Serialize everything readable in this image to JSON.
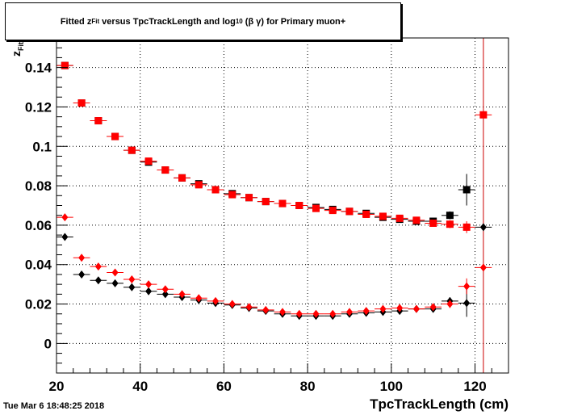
{
  "title": {
    "prefix": "Fitted",
    "var": "z",
    "var_sub": "Fit",
    "middle": "versus TpcTrackLength and log",
    "log_sub": "10",
    "suffix": "(β γ) for Primary muon+"
  },
  "timestamp": "Tue Mar  6 18:48:25 2018",
  "chart_data": {
    "type": "scatter",
    "xlabel": "TpcTrackLength (cm)",
    "ylabel": "z",
    "ylabel_sub": "Fit",
    "xlim": [
      20,
      128
    ],
    "ylim": [
      -0.015,
      0.155
    ],
    "xticks": [
      20,
      40,
      60,
      80,
      100,
      120
    ],
    "yticks": [
      0,
      0.02,
      0.04,
      0.06,
      0.08,
      0.1,
      0.12,
      0.14
    ],
    "ytick_labels": [
      "0",
      "0.02",
      "0.04",
      "0.06",
      "0.08",
      "0.1",
      "0.12",
      "0.14"
    ],
    "grid": true,
    "vertical_line_x": 122,
    "vertical_line_color": "#cc0000",
    "series": [
      {
        "marker": "square",
        "color": "#000000",
        "x": [
          22,
          26,
          30,
          34,
          38,
          42,
          46,
          50,
          54,
          58,
          62,
          66,
          70,
          74,
          78,
          82,
          86,
          90,
          94,
          98,
          102,
          106,
          110,
          114,
          118
        ],
        "y": [
          0.141,
          0.122,
          0.113,
          0.105,
          0.098,
          0.092,
          0.088,
          0.084,
          0.081,
          0.078,
          0.076,
          0.074,
          0.072,
          0.071,
          0.07,
          0.069,
          0.068,
          0.067,
          0.066,
          0.064,
          0.063,
          0.062,
          0.062,
          0.065,
          0.078
        ],
        "yerr": [
          0.001,
          0.001,
          0.001,
          0.001,
          0.001,
          0.001,
          0.001,
          0.001,
          0.001,
          0.001,
          0.001,
          0.001,
          0.001,
          0.001,
          0.001,
          0.001,
          0.001,
          0.001,
          0.001,
          0.001,
          0.001,
          0.001,
          0.001,
          0.002,
          0.008
        ]
      },
      {
        "marker": "square",
        "color": "#ff0000",
        "x": [
          22,
          26,
          30,
          34,
          38,
          42,
          46,
          50,
          54,
          58,
          62,
          66,
          70,
          74,
          78,
          82,
          86,
          90,
          94,
          98,
          102,
          106,
          110,
          114,
          118,
          122
        ],
        "y": [
          0.141,
          0.122,
          0.113,
          0.105,
          0.098,
          0.0925,
          0.088,
          0.084,
          0.0805,
          0.078,
          0.0755,
          0.074,
          0.072,
          0.071,
          0.07,
          0.0685,
          0.0675,
          0.067,
          0.0655,
          0.0645,
          0.0635,
          0.0625,
          0.061,
          0.0605,
          0.059,
          0.116
        ],
        "yerr": [
          0.001,
          0.001,
          0.001,
          0.001,
          0.001,
          0.001,
          0.001,
          0.001,
          0.001,
          0.001,
          0.001,
          0.001,
          0.001,
          0.001,
          0.001,
          0.001,
          0.001,
          0.001,
          0.001,
          0.001,
          0.001,
          0.001,
          0.001,
          0.002,
          0.003,
          0.0
        ]
      },
      {
        "marker": "diamond",
        "color": "#000000",
        "x": [
          22,
          26,
          30,
          34,
          38,
          42,
          46,
          50,
          54,
          58,
          62,
          66,
          70,
          74,
          78,
          82,
          86,
          90,
          94,
          98,
          102,
          106,
          110,
          114,
          118,
          122
        ],
        "y": [
          0.054,
          0.035,
          0.032,
          0.0305,
          0.0285,
          0.0265,
          0.025,
          0.0235,
          0.022,
          0.0205,
          0.0195,
          0.018,
          0.0165,
          0.015,
          0.014,
          0.014,
          0.014,
          0.015,
          0.0155,
          0.016,
          0.0165,
          0.0175,
          0.0175,
          0.0215,
          0.0205,
          0.059
        ],
        "yerr": [
          0.0005,
          0.0005,
          0.0005,
          0.0005,
          0.0005,
          0.0005,
          0.0005,
          0.0005,
          0.0005,
          0.0005,
          0.0005,
          0.0005,
          0.0005,
          0.0005,
          0.0005,
          0.0005,
          0.0005,
          0.0005,
          0.0005,
          0.0005,
          0.0005,
          0.0005,
          0.001,
          0.002,
          0.007,
          0.0
        ]
      },
      {
        "marker": "diamond",
        "color": "#ff0000",
        "x": [
          22,
          26,
          30,
          34,
          38,
          42,
          46,
          50,
          54,
          58,
          62,
          66,
          70,
          74,
          78,
          82,
          86,
          90,
          94,
          98,
          102,
          106,
          110,
          114,
          118,
          122
        ],
        "y": [
          0.064,
          0.0435,
          0.039,
          0.036,
          0.0325,
          0.03,
          0.0275,
          0.025,
          0.023,
          0.0215,
          0.02,
          0.0185,
          0.017,
          0.016,
          0.015,
          0.015,
          0.015,
          0.016,
          0.0165,
          0.0175,
          0.018,
          0.0175,
          0.0185,
          0.02,
          0.029,
          0.0385
        ],
        "yerr": [
          0.0005,
          0.0005,
          0.0005,
          0.0005,
          0.0005,
          0.0005,
          0.0005,
          0.0005,
          0.0005,
          0.0005,
          0.0005,
          0.0005,
          0.0005,
          0.0005,
          0.0005,
          0.0005,
          0.0005,
          0.0005,
          0.0005,
          0.0005,
          0.0005,
          0.0005,
          0.001,
          0.002,
          0.004,
          0.0
        ]
      }
    ]
  }
}
